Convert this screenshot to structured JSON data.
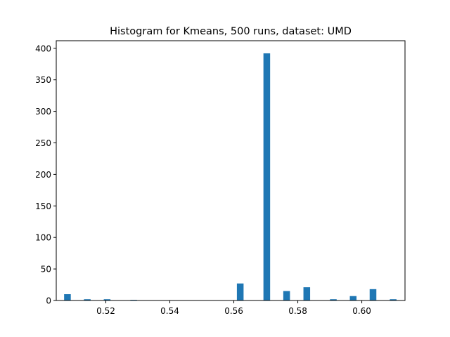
{
  "chart_data": {
    "type": "bar",
    "title": "Histogram for Kmeans, 500 runs, dataset: UMD",
    "xlabel": "",
    "ylabel": "",
    "xlim": [
      0.5045,
      0.6135
    ],
    "ylim": [
      0,
      412
    ],
    "bin_width": 0.00209,
    "xticks": [
      0.52,
      0.54,
      0.56,
      0.58,
      0.6
    ],
    "xtick_labels": [
      "0.52",
      "0.54",
      "0.56",
      "0.58",
      "0.60"
    ],
    "yticks": [
      0,
      50,
      100,
      150,
      200,
      250,
      300,
      350,
      400
    ],
    "ytick_labels": [
      "0",
      "50",
      "100",
      "150",
      "200",
      "250",
      "300",
      "350",
      "400"
    ],
    "bins": [
      {
        "x": 0.508,
        "count": 10
      },
      {
        "x": 0.5142,
        "count": 2
      },
      {
        "x": 0.5204,
        "count": 2
      },
      {
        "x": 0.5287,
        "count": 1
      },
      {
        "x": 0.562,
        "count": 27
      },
      {
        "x": 0.5703,
        "count": 392
      },
      {
        "x": 0.5765,
        "count": 15
      },
      {
        "x": 0.5828,
        "count": 21
      },
      {
        "x": 0.5911,
        "count": 2
      },
      {
        "x": 0.5973,
        "count": 7
      },
      {
        "x": 0.6035,
        "count": 18
      },
      {
        "x": 0.6098,
        "count": 2
      }
    ],
    "bar_color": "#1f77b4",
    "grid": false
  }
}
